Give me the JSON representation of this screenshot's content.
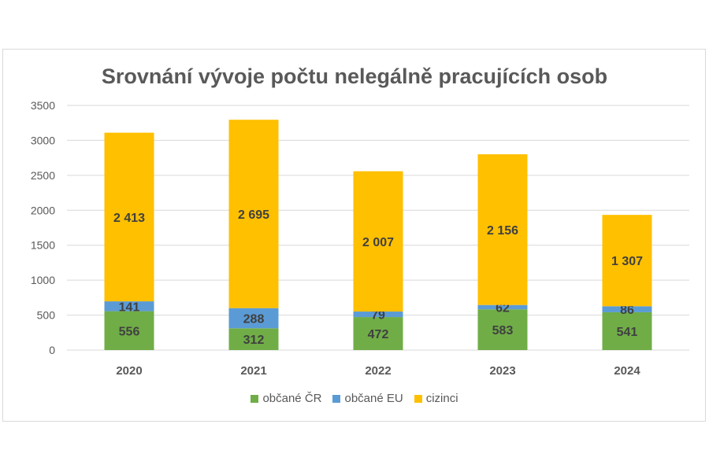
{
  "chart_data": {
    "type": "bar",
    "stacked": true,
    "title": "Srovnání vývoje počtu nelegálně pracujících osob",
    "categories": [
      "2020",
      "2021",
      "2022",
      "2023",
      "2024"
    ],
    "series": [
      {
        "name": "občané ČR",
        "color": "#70AD47",
        "values": [
          556,
          312,
          472,
          583,
          541
        ],
        "labels": [
          "556",
          "312",
          "472",
          "583",
          "541"
        ]
      },
      {
        "name": "občané EU",
        "color": "#5B9BD5",
        "values": [
          141,
          288,
          79,
          62,
          86
        ],
        "labels": [
          "141",
          "288",
          "79",
          "62",
          "86"
        ]
      },
      {
        "name": "cizinci",
        "color": "#FFC000",
        "values": [
          2413,
          2695,
          2007,
          2156,
          1307
        ],
        "labels": [
          "2 413",
          "2 695",
          "2 007",
          "2 156",
          "1 307"
        ]
      }
    ],
    "ylim": [
      0,
      3500
    ],
    "yticks": [
      "0",
      "500",
      "1000",
      "1500",
      "2000",
      "2500",
      "3000",
      "3500"
    ],
    "grid": true,
    "legend": "bottom"
  }
}
